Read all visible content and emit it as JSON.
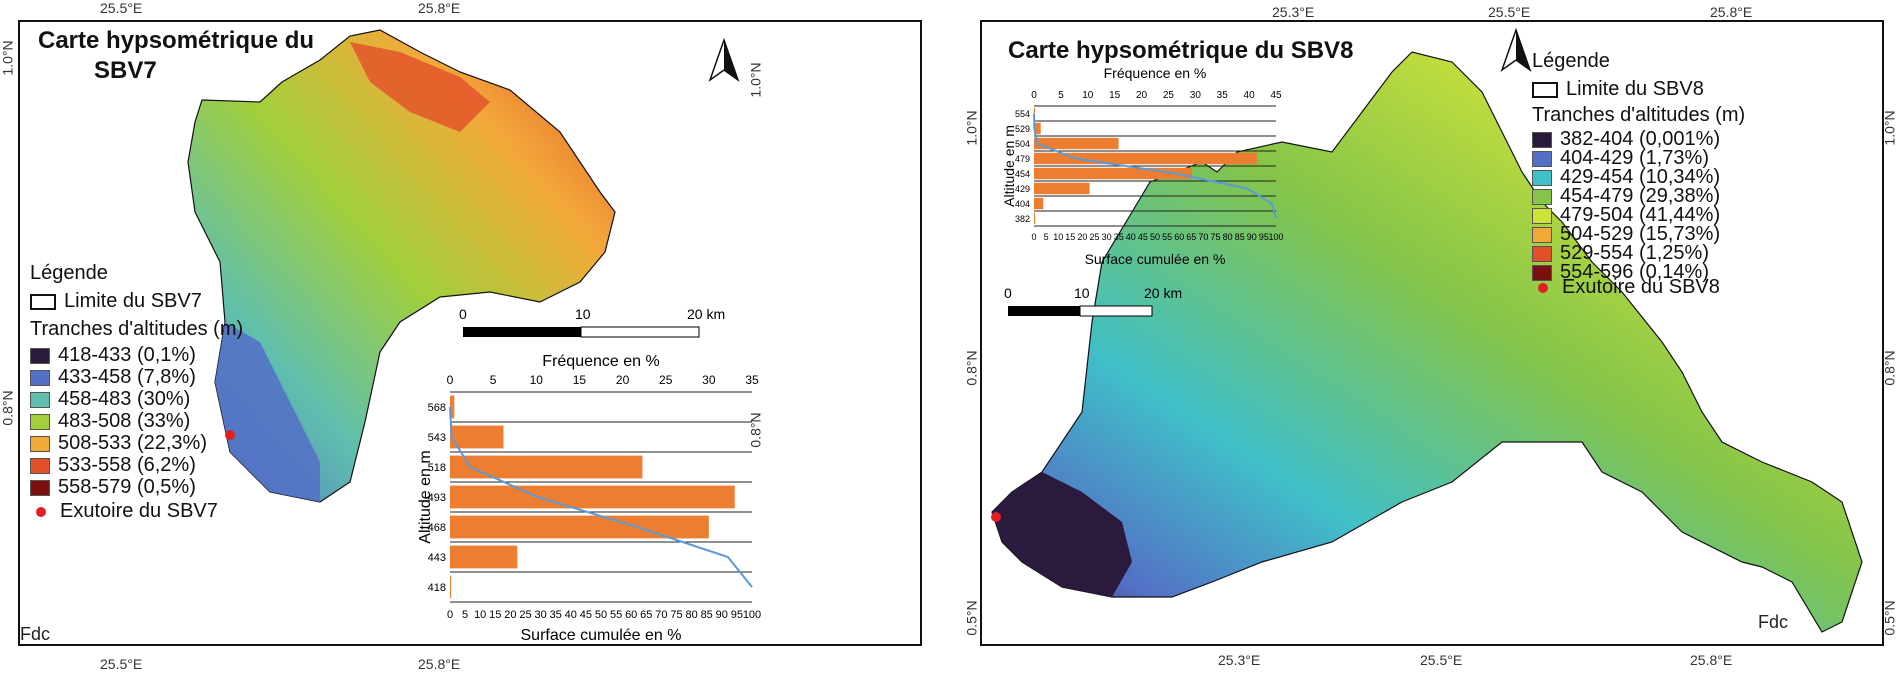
{
  "left": {
    "title_line1": "Carte  hypsométrique du",
    "title_line2": "SBV7",
    "coords": {
      "top_left": "25.5°E",
      "top_right": "25.8°E",
      "bottom_left": "25.5°E",
      "bottom_right": "25.8°E",
      "left_top": "1.0°N",
      "left_bottom": "0.8°N",
      "right_top": "1.0°N",
      "right_bottom": "0.8°N"
    },
    "legend": {
      "title": "Légende",
      "boundary": "Limite du SBV7",
      "classes_title": "Tranches d'altitudes (m)",
      "classes": [
        {
          "label": "418-433 (0,1%)",
          "color": "#2a1a3e"
        },
        {
          "label": "433-458 (7,8%)",
          "color": "#5470c6"
        },
        {
          "label": "458-483 (30%)",
          "color": "#5fbfae"
        },
        {
          "label": "483-508 (33%)",
          "color": "#a3cf3a"
        },
        {
          "label": "508-533 (22,3%)",
          "color": "#f3a93a"
        },
        {
          "label": "533-558 (6,2%)",
          "color": "#e2502a"
        },
        {
          "label": "558-579 (0,5%)",
          "color": "#7a1010"
        }
      ],
      "outlet": "Exutoire du SBV7"
    },
    "scale": {
      "zero": "0",
      "mid": "10",
      "end": "20 km"
    },
    "fdc": "Fdc"
  },
  "right": {
    "title": "Carte  hypsométrique du SBV8",
    "coords": {
      "top_1": "25.3°E",
      "top_2": "25.5°E",
      "top_3": "25.8°E",
      "bottom_1": "25.3°E",
      "bottom_2": "25.5°E",
      "bottom_3": "25.8°E",
      "left_top": "1.0°N",
      "left_mid": "0.8°N",
      "left_bottom": "0.5°N",
      "right_top": "1.0°N",
      "right_mid": "0.8°N",
      "right_bottom": "0.5°N"
    },
    "legend": {
      "title": "Légende",
      "boundary": "Limite du SBV8",
      "classes_title": "Tranches d'altitudes (m)",
      "classes": [
        {
          "label": "382-404 (0,001%)",
          "color": "#2a1a3e"
        },
        {
          "label": "404-429 (1,73%)",
          "color": "#5470c6"
        },
        {
          "label": "429-454 (10,34%)",
          "color": "#40c0c8"
        },
        {
          "label": "454-479 (29,38%)",
          "color": "#84c44a"
        },
        {
          "label": "479-504 (41,44%)",
          "color": "#cde23a"
        },
        {
          "label": "504-529 (15,73%)",
          "color": "#f3a93a"
        },
        {
          "label": "529-554 (1,25%)",
          "color": "#e2502a"
        },
        {
          "label": "554-596 (0,14%)",
          "color": "#7a1010"
        }
      ],
      "outlet": "Exutoire du SBV8"
    },
    "scale": {
      "zero": "0",
      "mid": "10",
      "end": "20 km"
    },
    "fdc": "Fdc"
  },
  "chart_data": [
    {
      "type": "bar",
      "orientation": "horizontal",
      "title": "Fréquence en %",
      "xlabel": "Surface cumulée en %",
      "ylabel": "Altitude en m",
      "categories": [
        "568",
        "543",
        "518",
        "493",
        "468",
        "443",
        "418"
      ],
      "top_axis_ticks": [
        "0",
        "5",
        "10",
        "15",
        "20",
        "25",
        "30",
        "35"
      ],
      "top_axis_range": [
        0,
        35
      ],
      "bottom_axis_ticks": [
        "0",
        "5",
        "10",
        "15",
        "20",
        "25",
        "30",
        "35",
        "40",
        "45",
        "50",
        "55",
        "60",
        "65",
        "70",
        "75",
        "80",
        "85",
        "90",
        "95",
        "100"
      ],
      "series": [
        {
          "name": "Fréquence",
          "values": [
            0.5,
            6.2,
            22.3,
            33,
            30,
            7.8,
            0.1
          ]
        },
        {
          "name": "Surface cumulée",
          "values": [
            0,
            0.5,
            6.7,
            29,
            62,
            92,
            100
          ]
        }
      ],
      "bar_color": "#ed7d31",
      "line_color": "#5b9bd5"
    },
    {
      "type": "bar",
      "orientation": "horizontal",
      "title": "Fréquence en %",
      "xlabel": "Surface cumulée en %",
      "ylabel": "Altitude en m",
      "categories": [
        "554",
        "529",
        "504",
        "479",
        "454",
        "429",
        "404",
        "382"
      ],
      "top_axis_ticks": [
        "0",
        "5",
        "10",
        "15",
        "20",
        "25",
        "30",
        "35",
        "40",
        "45"
      ],
      "top_axis_range": [
        0,
        45
      ],
      "bottom_axis_ticks": [
        "0",
        "5",
        "10",
        "15",
        "20",
        "25",
        "30",
        "35",
        "40",
        "45",
        "50",
        "55",
        "60",
        "65",
        "70",
        "75",
        "80",
        "85",
        "90",
        "95",
        "100"
      ],
      "series": [
        {
          "name": "Fréquence",
          "values": [
            0.14,
            1.25,
            15.73,
            41.44,
            29.38,
            10.34,
            1.73,
            0.001
          ]
        },
        {
          "name": "Surface cumulée",
          "values": [
            0,
            0.14,
            1.4,
            17.1,
            58.6,
            88,
            98.3,
            100
          ]
        }
      ],
      "bar_color": "#ed7d31",
      "line_color": "#5b9bd5"
    }
  ]
}
